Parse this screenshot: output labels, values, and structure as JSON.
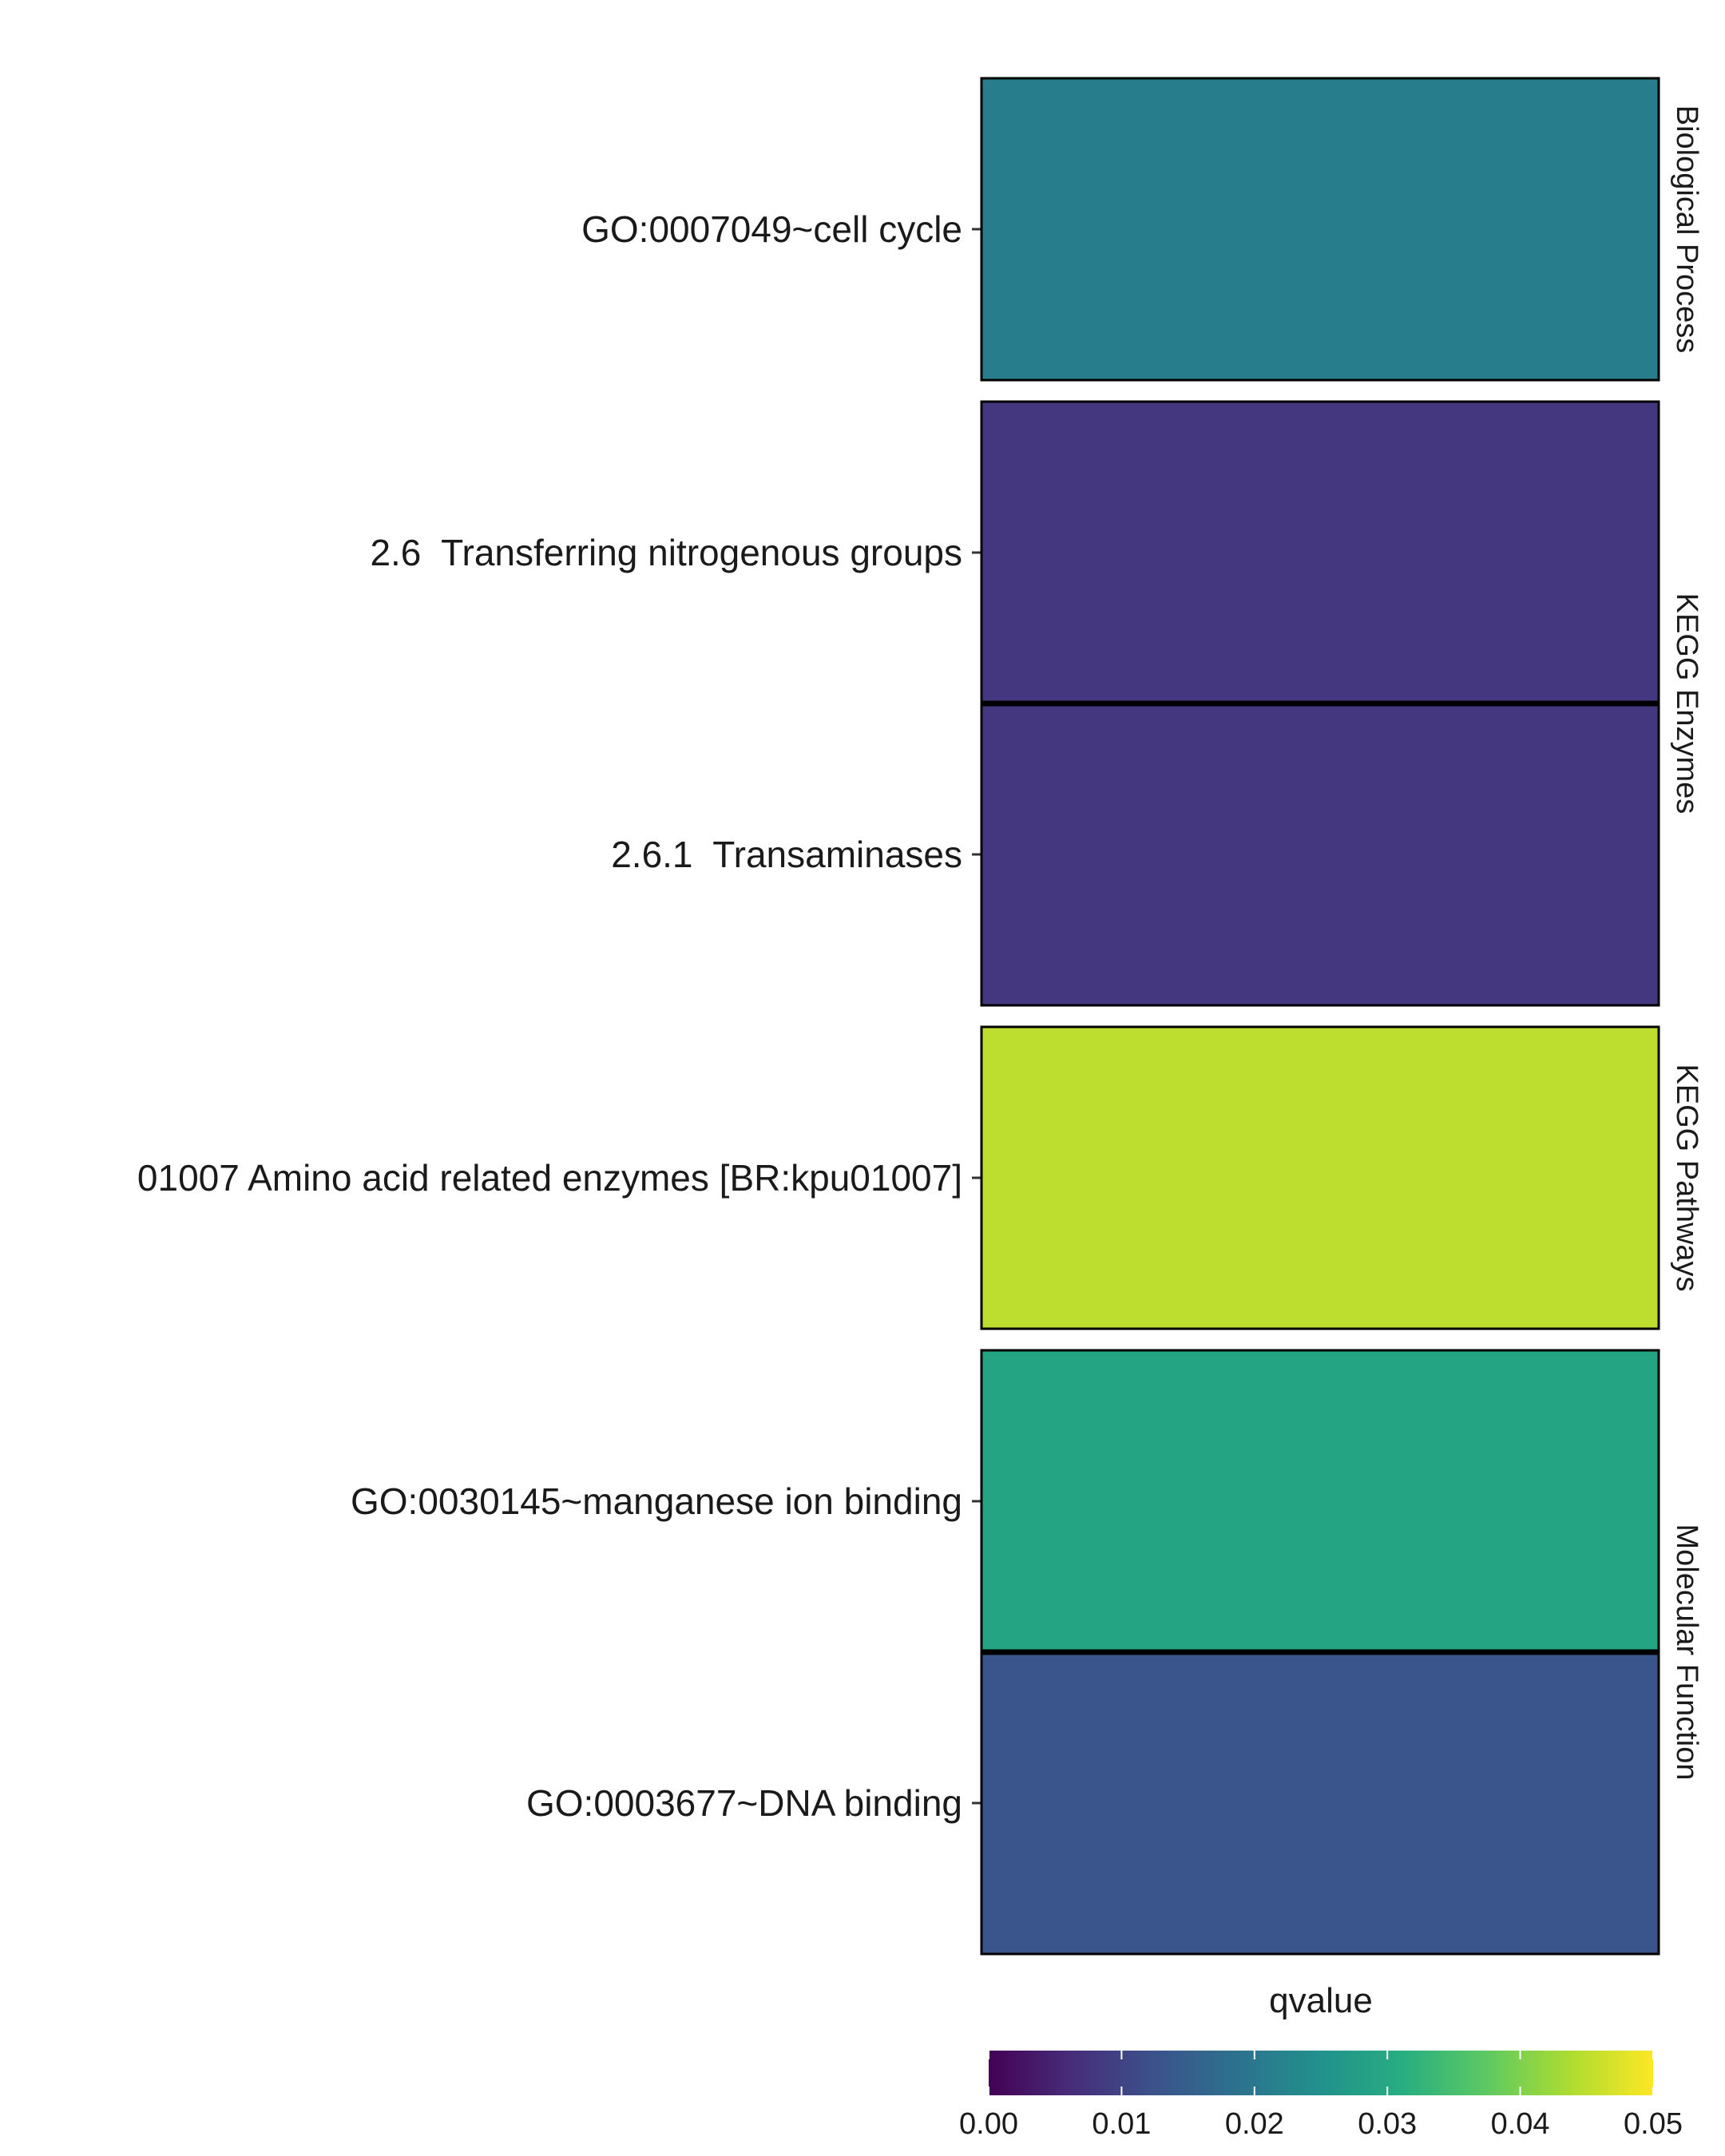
{
  "chart_data": {
    "type": "heatmap",
    "title": "",
    "xlabel": "",
    "ylabel": "",
    "facets": [
      {
        "name": "Biological Process",
        "rows": [
          {
            "label": "GO:0007049~cell cycle",
            "qvalue": 0.021
          }
        ]
      },
      {
        "name": "KEGG Enzymes",
        "rows": [
          {
            "label": "2.6  Transferring nitrogenous groups",
            "qvalue": 0.008
          },
          {
            "label": "2.6.1  Transaminases",
            "qvalue": 0.008
          }
        ]
      },
      {
        "name": "KEGG Pathways",
        "rows": [
          {
            "label": "01007 Amino acid related enzymes [BR:kpu01007]",
            "qvalue": 0.045
          }
        ]
      },
      {
        "name": "Molecular Function",
        "rows": [
          {
            "label": "GO:0030145~manganese ion binding",
            "qvalue": 0.029
          },
          {
            "label": "GO:0003677~DNA binding",
            "qvalue": 0.013
          }
        ]
      }
    ],
    "legend": {
      "title": "qvalue",
      "position": "bottom",
      "range": [
        0,
        0.05
      ],
      "ticks": [
        0,
        0.01,
        0.02,
        0.03,
        0.04,
        0.05
      ],
      "tick_labels": [
        "0.00",
        "0.01",
        "0.02",
        "0.03",
        "0.04",
        "0.05"
      ],
      "palette": "viridis"
    },
    "grid": false
  }
}
